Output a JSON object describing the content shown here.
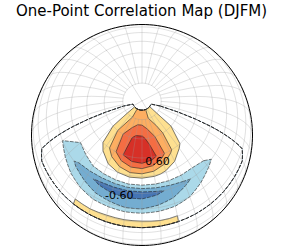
{
  "chart_data": {
    "type": "contour_map",
    "title": "One-Point Correlation Map (DJFM)",
    "lons": [
      -100,
      -90,
      -80,
      -70,
      -60,
      -50,
      -40,
      -30,
      -20,
      -10,
      0,
      10,
      20,
      30,
      40
    ],
    "lats": [
      20,
      30,
      40,
      50,
      60,
      70,
      80
    ],
    "values": [
      [
        0.1,
        0.1,
        0.15,
        0.2,
        0.2,
        0.25,
        0.25,
        0.25,
        0.2,
        0.2,
        0.15,
        0.1,
        0.1,
        0.05,
        0.05
      ],
      [
        0.0,
        0.0,
        -0.1,
        -0.2,
        -0.3,
        -0.35,
        -0.4,
        -0.4,
        -0.35,
        -0.3,
        -0.2,
        -0.1,
        0.0,
        0.0,
        0.0
      ],
      [
        -0.2,
        -0.3,
        -0.45,
        -0.55,
        -0.65,
        -0.7,
        -0.7,
        -0.7,
        -0.65,
        -0.55,
        -0.45,
        -0.35,
        -0.25,
        -0.15,
        -0.1
      ],
      [
        -0.2,
        -0.2,
        -0.15,
        0.0,
        0.1,
        0.2,
        0.3,
        0.3,
        0.25,
        0.15,
        0.05,
        -0.05,
        -0.1,
        -0.1,
        -0.1
      ],
      [
        -0.1,
        0.0,
        0.1,
        0.3,
        0.55,
        0.8,
        0.95,
        1.0,
        0.9,
        0.7,
        0.45,
        0.25,
        0.1,
        0.0,
        -0.1
      ],
      [
        0.0,
        0.1,
        0.2,
        0.4,
        0.6,
        0.75,
        0.85,
        0.85,
        0.75,
        0.6,
        0.45,
        0.3,
        0.2,
        0.1,
        0.0
      ],
      [
        0.1,
        0.15,
        0.2,
        0.3,
        0.4,
        0.45,
        0.5,
        0.5,
        0.45,
        0.4,
        0.35,
        0.3,
        0.2,
        0.15,
        0.1
      ]
    ],
    "levels": [
      -1.0,
      -0.6,
      -0.4,
      -0.2,
      0.2,
      0.4,
      0.6,
      0.8
    ],
    "colors": [
      "#4575b4",
      "#74add1",
      "#abd9e9",
      "#ffffff",
      "#fee090",
      "#fdae61",
      "#f46d43",
      "#d73027"
    ],
    "contour_labels": [
      {
        "text": "0.60",
        "lon": -15,
        "lat": 57
      },
      {
        "text": "-0.60",
        "lon": -45,
        "lat": 37
      }
    ]
  }
}
